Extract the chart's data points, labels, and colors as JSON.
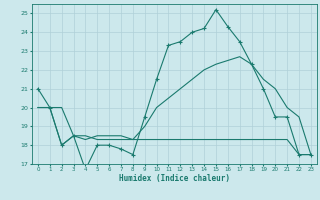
{
  "title": "",
  "xlabel": "Humidex (Indice chaleur)",
  "ylabel": "",
  "background_color": "#cce8ec",
  "grid_color": "#b0d0d8",
  "line_color": "#1a7a6e",
  "xlim": [
    -0.5,
    23.5
  ],
  "ylim": [
    17,
    25.5
  ],
  "xticks": [
    0,
    1,
    2,
    3,
    4,
    5,
    6,
    7,
    8,
    9,
    10,
    11,
    12,
    13,
    14,
    15,
    16,
    17,
    18,
    19,
    20,
    21,
    22,
    23
  ],
  "yticks": [
    17,
    18,
    19,
    20,
    21,
    22,
    23,
    24,
    25
  ],
  "series1_x": [
    0,
    1,
    2,
    3,
    4,
    5,
    6,
    7,
    8,
    9,
    10,
    11,
    12,
    13,
    14,
    15,
    16,
    17,
    18,
    19,
    20,
    21,
    22,
    23
  ],
  "series1_y": [
    21,
    20,
    18,
    18.5,
    16.7,
    18,
    18,
    17.8,
    17.5,
    19.5,
    21.5,
    23.3,
    23.5,
    24.0,
    24.2,
    25.2,
    24.3,
    23.5,
    22.3,
    21.0,
    19.5,
    19.5,
    17.5,
    17.5
  ],
  "series2_x": [
    0,
    1,
    2,
    3,
    4,
    5,
    6,
    7,
    8,
    9,
    10,
    11,
    12,
    13,
    14,
    15,
    16,
    17,
    18,
    19,
    20,
    21,
    22,
    23
  ],
  "series2_y": [
    20,
    20,
    20,
    18.5,
    18.3,
    18.5,
    18.5,
    18.5,
    18.3,
    18.3,
    18.3,
    18.3,
    18.3,
    18.3,
    18.3,
    18.3,
    18.3,
    18.3,
    18.3,
    18.3,
    18.3,
    18.3,
    17.5,
    17.5
  ],
  "series3_x": [
    0,
    1,
    2,
    3,
    4,
    5,
    6,
    7,
    8,
    9,
    10,
    11,
    12,
    13,
    14,
    15,
    16,
    17,
    18,
    19,
    20,
    21,
    22,
    23
  ],
  "series3_y": [
    20,
    20,
    18,
    18.5,
    18.5,
    18.3,
    18.3,
    18.3,
    18.3,
    19.0,
    20.0,
    20.5,
    21.0,
    21.5,
    22.0,
    22.3,
    22.5,
    22.7,
    22.3,
    21.5,
    21.0,
    20.0,
    19.5,
    17.5
  ]
}
